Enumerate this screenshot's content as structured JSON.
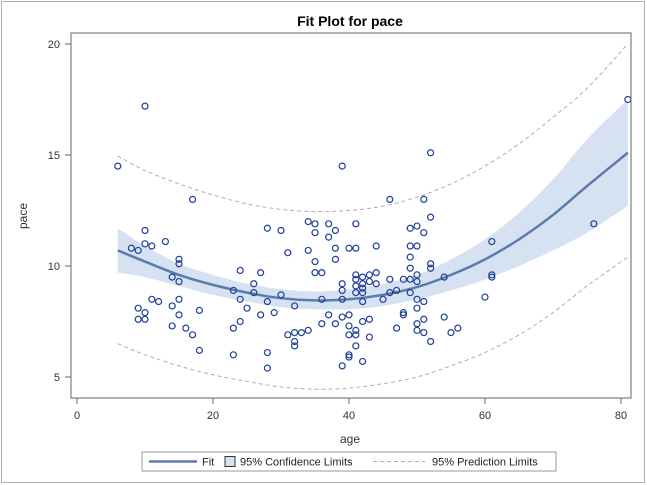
{
  "chart_data": {
    "type": "scatter",
    "title": "Fit Plot for pace",
    "xlabel": "age",
    "ylabel": "pace",
    "xlim": [
      0,
      82
    ],
    "ylim": [
      4,
      21
    ],
    "x_ticks": [
      0,
      20,
      40,
      60,
      80
    ],
    "y_ticks": [
      5,
      10,
      15,
      20
    ],
    "grid": false,
    "legend": {
      "placement": "bottom",
      "entries": [
        "Fit",
        "95% Confidence Limits",
        "95% Prediction Limits"
      ]
    },
    "colors": {
      "points": "#1f3f95",
      "fit": "#5b7bab",
      "band": "#d6e1f2",
      "prediction": "#b4a8c2",
      "frame": "#666666"
    },
    "fit_curve": {
      "x": [
        6,
        10,
        15,
        20,
        25,
        30,
        35,
        40,
        45,
        50,
        55,
        60,
        65,
        70,
        75,
        81
      ],
      "y": [
        10.7,
        10.2,
        9.6,
        9.15,
        8.8,
        8.55,
        8.45,
        8.5,
        8.7,
        9.05,
        9.6,
        10.3,
        11.2,
        12.3,
        13.6,
        15.1
      ]
    },
    "confidence_upper": [
      11.7,
      10.9,
      10.1,
      9.6,
      9.2,
      8.95,
      8.85,
      8.95,
      9.2,
      9.6,
      10.3,
      11.2,
      12.4,
      13.9,
      15.7,
      17.5
    ],
    "confidence_lower": [
      9.7,
      9.5,
      9.1,
      8.7,
      8.4,
      8.15,
      8.05,
      8.05,
      8.2,
      8.5,
      8.9,
      9.4,
      10.0,
      10.7,
      11.5,
      12.7
    ],
    "prediction_upper": [
      14.95,
      14.3,
      13.7,
      13.2,
      12.8,
      12.55,
      12.45,
      12.5,
      12.7,
      13.1,
      13.7,
      14.5,
      15.5,
      16.7,
      18.0,
      20.0
    ],
    "prediction_lower": [
      6.5,
      6.0,
      5.5,
      5.1,
      4.8,
      4.55,
      4.45,
      4.5,
      4.7,
      5.0,
      5.5,
      6.1,
      6.9,
      7.9,
      9.1,
      10.4
    ],
    "points": [
      {
        "x": 6,
        "y": 14.5
      },
      {
        "x": 10,
        "y": 17.2
      },
      {
        "x": 81,
        "y": 17.5
      },
      {
        "x": 76,
        "y": 11.9
      },
      {
        "x": 61,
        "y": 11.1
      },
      {
        "x": 61,
        "y": 9.6
      },
      {
        "x": 61,
        "y": 9.5
      },
      {
        "x": 60,
        "y": 8.6
      },
      {
        "x": 52,
        "y": 15.1
      },
      {
        "x": 39,
        "y": 14.5
      },
      {
        "x": 17,
        "y": 13.0
      },
      {
        "x": 46,
        "y": 13.0
      },
      {
        "x": 51,
        "y": 13.0
      },
      {
        "x": 52,
        "y": 12.2
      },
      {
        "x": 51,
        "y": 11.5
      },
      {
        "x": 49,
        "y": 11.7
      },
      {
        "x": 50,
        "y": 11.8
      },
      {
        "x": 49,
        "y": 10.9
      },
      {
        "x": 50,
        "y": 10.9
      },
      {
        "x": 52,
        "y": 10.1
      },
      {
        "x": 8,
        "y": 10.8
      },
      {
        "x": 9,
        "y": 10.7
      },
      {
        "x": 10,
        "y": 11.0
      },
      {
        "x": 10,
        "y": 11.6
      },
      {
        "x": 11,
        "y": 10.9
      },
      {
        "x": 13,
        "y": 11.1
      },
      {
        "x": 15,
        "y": 10.3
      },
      {
        "x": 15,
        "y": 10.1
      },
      {
        "x": 14,
        "y": 9.5
      },
      {
        "x": 15,
        "y": 9.3
      },
      {
        "x": 9,
        "y": 8.1
      },
      {
        "x": 10,
        "y": 7.9
      },
      {
        "x": 9,
        "y": 7.6
      },
      {
        "x": 10,
        "y": 7.6
      },
      {
        "x": 11,
        "y": 8.5
      },
      {
        "x": 12,
        "y": 8.4
      },
      {
        "x": 14,
        "y": 8.2
      },
      {
        "x": 15,
        "y": 8.5
      },
      {
        "x": 14,
        "y": 7.3
      },
      {
        "x": 15,
        "y": 7.8
      },
      {
        "x": 16,
        "y": 7.2
      },
      {
        "x": 17,
        "y": 6.9
      },
      {
        "x": 18,
        "y": 6.2
      },
      {
        "x": 18,
        "y": 8.0
      },
      {
        "x": 23,
        "y": 8.9
      },
      {
        "x": 24,
        "y": 9.8
      },
      {
        "x": 24,
        "y": 8.5
      },
      {
        "x": 25,
        "y": 8.1
      },
      {
        "x": 23,
        "y": 7.2
      },
      {
        "x": 24,
        "y": 7.5
      },
      {
        "x": 23,
        "y": 6.0
      },
      {
        "x": 28,
        "y": 11.7
      },
      {
        "x": 27,
        "y": 9.7
      },
      {
        "x": 26,
        "y": 9.2
      },
      {
        "x": 26,
        "y": 8.8
      },
      {
        "x": 27,
        "y": 7.8
      },
      {
        "x": 28,
        "y": 8.4
      },
      {
        "x": 29,
        "y": 7.9
      },
      {
        "x": 28,
        "y": 6.1
      },
      {
        "x": 28,
        "y": 5.4
      },
      {
        "x": 30,
        "y": 11.6
      },
      {
        "x": 31,
        "y": 10.6
      },
      {
        "x": 30,
        "y": 8.7
      },
      {
        "x": 31,
        "y": 6.9
      },
      {
        "x": 32,
        "y": 7.0
      },
      {
        "x": 32,
        "y": 6.6
      },
      {
        "x": 32,
        "y": 6.4
      },
      {
        "x": 33,
        "y": 7.0
      },
      {
        "x": 32,
        "y": 8.2
      },
      {
        "x": 34,
        "y": 12.0
      },
      {
        "x": 35,
        "y": 11.9
      },
      {
        "x": 35,
        "y": 11.5
      },
      {
        "x": 34,
        "y": 10.7
      },
      {
        "x": 35,
        "y": 10.2
      },
      {
        "x": 35,
        "y": 9.7
      },
      {
        "x": 36,
        "y": 9.7
      },
      {
        "x": 36,
        "y": 8.5
      },
      {
        "x": 34,
        "y": 7.1
      },
      {
        "x": 36,
        "y": 7.4
      },
      {
        "x": 37,
        "y": 7.8
      },
      {
        "x": 38,
        "y": 7.4
      },
      {
        "x": 37,
        "y": 11.9
      },
      {
        "x": 38,
        "y": 11.6
      },
      {
        "x": 37,
        "y": 11.3
      },
      {
        "x": 38,
        "y": 10.8
      },
      {
        "x": 38,
        "y": 10.3
      },
      {
        "x": 39,
        "y": 9.2
      },
      {
        "x": 39,
        "y": 8.9
      },
      {
        "x": 39,
        "y": 8.5
      },
      {
        "x": 39,
        "y": 7.7
      },
      {
        "x": 40,
        "y": 7.8
      },
      {
        "x": 40,
        "y": 7.3
      },
      {
        "x": 40,
        "y": 6.9
      },
      {
        "x": 40,
        "y": 6.0
      },
      {
        "x": 40,
        "y": 5.9
      },
      {
        "x": 39,
        "y": 5.5
      },
      {
        "x": 40,
        "y": 10.8
      },
      {
        "x": 41,
        "y": 10.8
      },
      {
        "x": 41,
        "y": 11.9
      },
      {
        "x": 41,
        "y": 9.6
      },
      {
        "x": 41,
        "y": 9.4
      },
      {
        "x": 41,
        "y": 9.1
      },
      {
        "x": 41,
        "y": 8.8
      },
      {
        "x": 41,
        "y": 7.1
      },
      {
        "x": 41,
        "y": 6.9
      },
      {
        "x": 41,
        "y": 6.4
      },
      {
        "x": 42,
        "y": 9.5
      },
      {
        "x": 42,
        "y": 9.2
      },
      {
        "x": 42,
        "y": 9.0
      },
      {
        "x": 42,
        "y": 8.8
      },
      {
        "x": 42,
        "y": 8.4
      },
      {
        "x": 42,
        "y": 7.5
      },
      {
        "x": 42,
        "y": 5.7
      },
      {
        "x": 43,
        "y": 9.6
      },
      {
        "x": 43,
        "y": 9.3
      },
      {
        "x": 43,
        "y": 7.6
      },
      {
        "x": 43,
        "y": 6.8
      },
      {
        "x": 44,
        "y": 10.9
      },
      {
        "x": 44,
        "y": 9.7
      },
      {
        "x": 44,
        "y": 9.2
      },
      {
        "x": 45,
        "y": 8.5
      },
      {
        "x": 46,
        "y": 8.8
      },
      {
        "x": 46,
        "y": 9.4
      },
      {
        "x": 47,
        "y": 8.9
      },
      {
        "x": 47,
        "y": 7.2
      },
      {
        "x": 48,
        "y": 9.4
      },
      {
        "x": 48,
        "y": 7.9
      },
      {
        "x": 48,
        "y": 7.8
      },
      {
        "x": 49,
        "y": 10.4
      },
      {
        "x": 49,
        "y": 9.9
      },
      {
        "x": 49,
        "y": 9.4
      },
      {
        "x": 49,
        "y": 8.8
      },
      {
        "x": 50,
        "y": 9.6
      },
      {
        "x": 50,
        "y": 9.3
      },
      {
        "x": 50,
        "y": 8.5
      },
      {
        "x": 50,
        "y": 8.1
      },
      {
        "x": 50,
        "y": 7.4
      },
      {
        "x": 50,
        "y": 7.1
      },
      {
        "x": 51,
        "y": 8.4
      },
      {
        "x": 51,
        "y": 7.6
      },
      {
        "x": 51,
        "y": 7.0
      },
      {
        "x": 52,
        "y": 9.9
      },
      {
        "x": 52,
        "y": 6.6
      },
      {
        "x": 54,
        "y": 9.5
      },
      {
        "x": 54,
        "y": 7.7
      },
      {
        "x": 55,
        "y": 7.0
      },
      {
        "x": 56,
        "y": 7.2
      }
    ]
  }
}
